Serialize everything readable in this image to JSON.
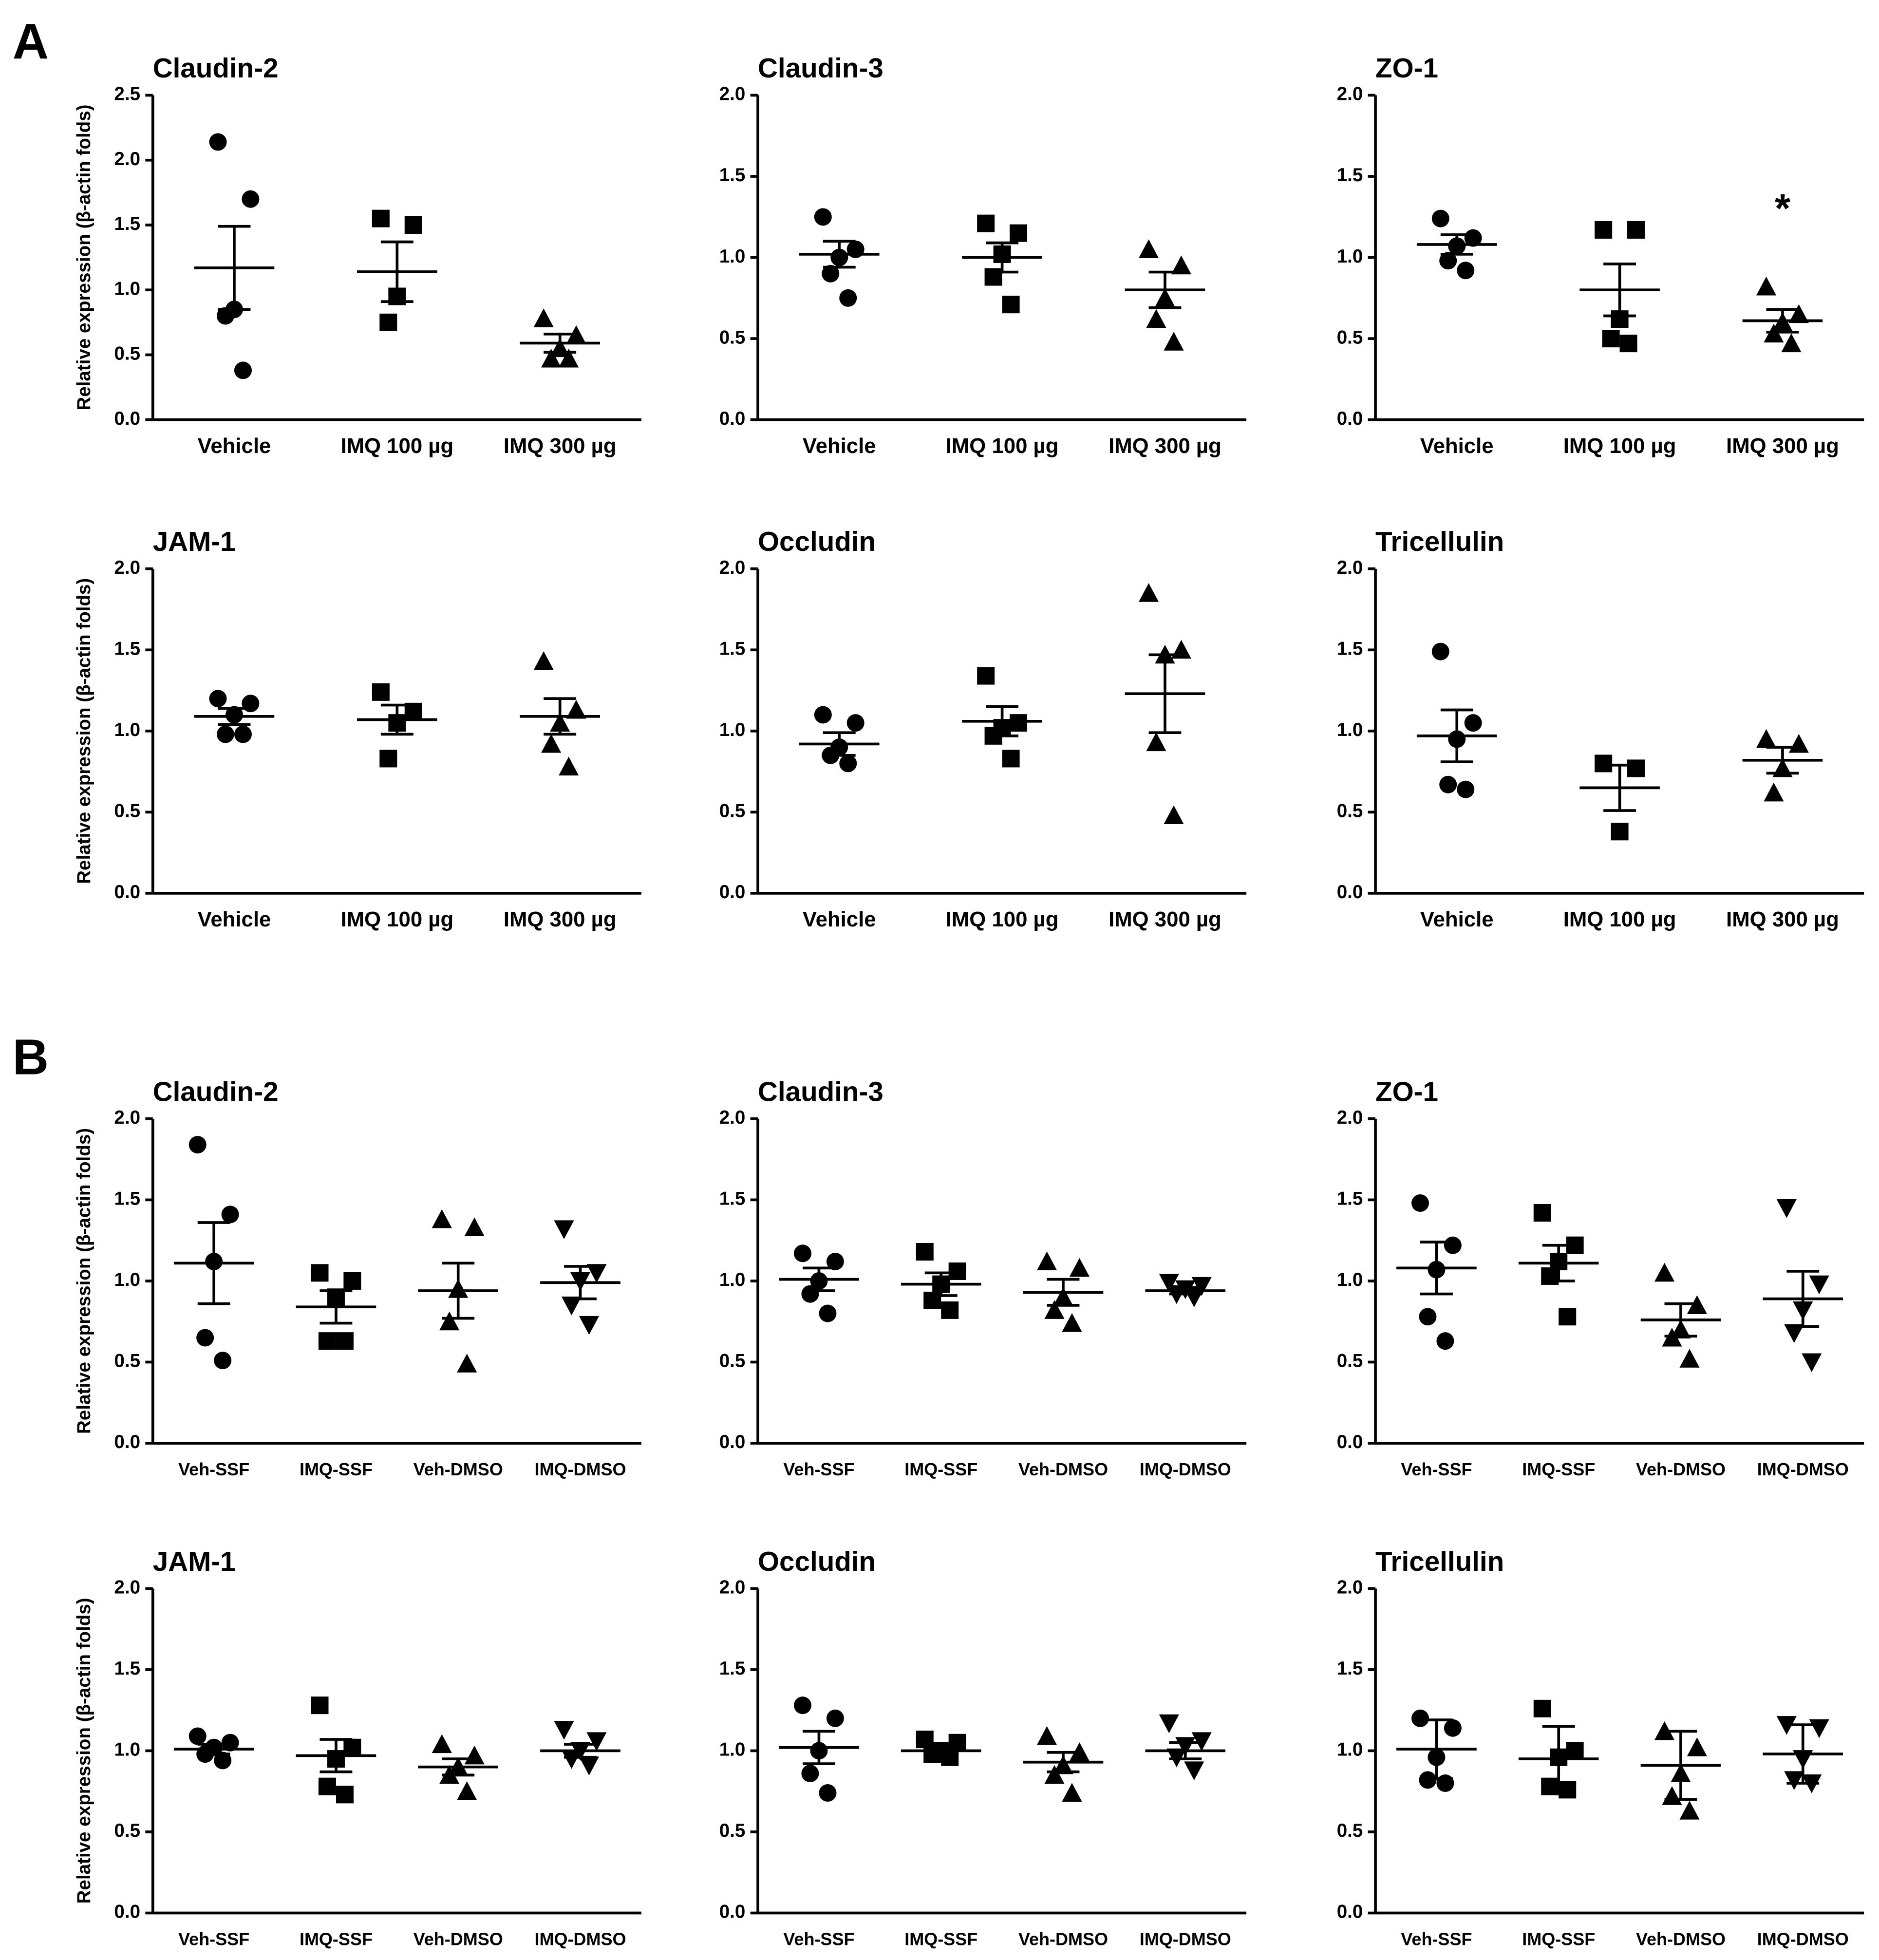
{
  "panel_labels": [
    "A",
    "B"
  ],
  "chart_data": [
    {
      "type": "dot",
      "title": "Claudin-2",
      "ylabel": "Relative expression (β-actin folds)",
      "ylim": [
        0,
        2.5
      ],
      "yticks": [
        {
          "value": 0,
          "label": "0.0"
        },
        {
          "value": 0.5,
          "label": "0.5"
        },
        {
          "value": 1,
          "label": "1.0"
        },
        {
          "value": 1.5,
          "label": "1.5"
        },
        {
          "value": 2,
          "label": "2.0"
        },
        2.5
      ],
      "markers": [
        "circle",
        "square",
        "triangle-up"
      ],
      "groups": [
        {
          "name": "Vehicle",
          "values": [
            2.14,
            1.7,
            0.85,
            0.8,
            0.38
          ],
          "mean": 1.17,
          "error": 0.32
        },
        {
          "name": "IMQ 100 µg",
          "values": [
            1.55,
            1.5,
            0.95,
            0.75
          ],
          "mean": 1.14,
          "error": 0.23
        },
        {
          "name": "IMQ 300 µg",
          "values": [
            0.78,
            0.65,
            0.55,
            0.47,
            0.47
          ],
          "mean": 0.59,
          "error": 0.07
        }
      ]
    },
    {
      "type": "dot",
      "title": "Claudin-3",
      "ylim": [
        0,
        2
      ],
      "yticks": [
        {
          "value": 0,
          "label": "0.0"
        },
        {
          "value": 0.5,
          "label": "0.5"
        },
        {
          "value": 1,
          "label": "1.0"
        },
        {
          "value": 1.5,
          "label": "1.5"
        },
        {
          "value": 2,
          "label": "2.0"
        }
      ],
      "markers": [
        "circle",
        "square",
        "triangle-up"
      ],
      "groups": [
        {
          "name": "Vehicle",
          "values": [
            1.25,
            1.05,
            1.0,
            0.9,
            0.75
          ],
          "mean": 1.02,
          "error": 0.08
        },
        {
          "name": "IMQ 100 µg",
          "values": [
            1.21,
            1.15,
            1.02,
            0.88,
            0.71
          ],
          "mean": 1.0,
          "error": 0.09
        },
        {
          "name": "IMQ 300 µg",
          "values": [
            1.05,
            0.95,
            0.75,
            0.62,
            0.48
          ],
          "mean": 0.8,
          "error": 0.11
        }
      ]
    },
    {
      "type": "dot",
      "title": "ZO-1",
      "ylim": [
        0,
        2
      ],
      "yticks": [
        {
          "value": 0,
          "label": "0.0"
        },
        {
          "value": 0.5,
          "label": "0.5"
        },
        {
          "value": 1,
          "label": "1.0"
        },
        {
          "value": 1.5,
          "label": "1.5"
        },
        {
          "value": 2,
          "label": "2.0"
        }
      ],
      "markers": [
        "circle",
        "square",
        "triangle-up"
      ],
      "groups": [
        {
          "name": "Vehicle",
          "values": [
            1.24,
            1.12,
            1.07,
            0.98,
            0.92
          ],
          "mean": 1.08,
          "error": 0.06
        },
        {
          "name": "IMQ 100 µg",
          "values": [
            1.17,
            1.17,
            0.62,
            0.5,
            0.47
          ],
          "mean": 0.8,
          "error": 0.16
        },
        {
          "name": "IMQ 300 µg",
          "values": [
            0.82,
            0.65,
            0.6,
            0.53,
            0.47
          ],
          "mean": 0.61,
          "error": 0.07,
          "annotation": "*"
        }
      ]
    },
    {
      "type": "dot",
      "title": "JAM-1",
      "ylabel": "Relative expression (β-actin folds)",
      "ylim": [
        0,
        2
      ],
      "yticks": [
        {
          "value": 0,
          "label": "0.0"
        },
        {
          "value": 0.5,
          "label": "0.5"
        },
        {
          "value": 1,
          "label": "1.0"
        },
        {
          "value": 1.5,
          "label": "1.5"
        },
        {
          "value": 2,
          "label": "2.0"
        }
      ],
      "markers": [
        "circle",
        "square",
        "triangle-up"
      ],
      "groups": [
        {
          "name": "Vehicle",
          "values": [
            1.2,
            1.17,
            1.1,
            0.98,
            0.98
          ],
          "mean": 1.09,
          "error": 0.05
        },
        {
          "name": "IMQ 100 µg",
          "values": [
            1.24,
            1.12,
            1.05,
            0.83
          ],
          "mean": 1.07,
          "error": 0.09
        },
        {
          "name": "IMQ 300 µg",
          "values": [
            1.43,
            1.13,
            1.05,
            0.92,
            0.78
          ],
          "mean": 1.09,
          "error": 0.11
        }
      ]
    },
    {
      "type": "dot",
      "title": "Occludin",
      "ylim": [
        0,
        2
      ],
      "yticks": [
        {
          "value": 0,
          "label": "0.0"
        },
        {
          "value": 0.5,
          "label": "0.5"
        },
        {
          "value": 1,
          "label": "1.0"
        },
        {
          "value": 1.5,
          "label": "1.5"
        },
        {
          "value": 2,
          "label": "2.0"
        }
      ],
      "markers": [
        "circle",
        "square",
        "triangle-up"
      ],
      "groups": [
        {
          "name": "Vehicle",
          "values": [
            1.1,
            1.05,
            0.9,
            0.85,
            0.8
          ],
          "mean": 0.92,
          "error": 0.07
        },
        {
          "name": "IMQ 100 µg",
          "values": [
            1.34,
            1.05,
            1.02,
            0.97,
            0.83
          ],
          "mean": 1.06,
          "error": 0.09
        },
        {
          "name": "IMQ 300 µg",
          "values": [
            1.85,
            1.5,
            1.47,
            0.93,
            0.48
          ],
          "mean": 1.23,
          "error": 0.24
        }
      ]
    },
    {
      "type": "dot",
      "title": "Tricellulin",
      "ylim": [
        0,
        2
      ],
      "yticks": [
        {
          "value": 0,
          "label": "0.0"
        },
        {
          "value": 0.5,
          "label": "0.5"
        },
        {
          "value": 1,
          "label": "1.0"
        },
        {
          "value": 1.5,
          "label": "1.5"
        },
        {
          "value": 2,
          "label": "2.0"
        }
      ],
      "markers": [
        "circle",
        "square",
        "triangle-up"
      ],
      "groups": [
        {
          "name": "Vehicle",
          "values": [
            1.49,
            1.05,
            0.95,
            0.67,
            0.64
          ],
          "mean": 0.97,
          "error": 0.16
        },
        {
          "name": "IMQ 100 µg",
          "values": [
            0.8,
            0.77,
            0.38
          ],
          "mean": 0.65,
          "error": 0.14
        },
        {
          "name": "IMQ 300 µg",
          "values": [
            0.95,
            0.92,
            0.77,
            0.62
          ],
          "mean": 0.82,
          "error": 0.08
        }
      ]
    },
    {
      "type": "dot",
      "title": "Claudin-2",
      "ylabel": "Relative expression (β-actin folds)",
      "ylim": [
        0,
        2
      ],
      "yticks": [
        {
          "value": 0,
          "label": "0.0"
        },
        {
          "value": 0.5,
          "label": "0.5"
        },
        {
          "value": 1,
          "label": "1.0"
        },
        {
          "value": 1.5,
          "label": "1.5"
        },
        {
          "value": 2,
          "label": "2.0"
        }
      ],
      "markers": [
        "circle",
        "square",
        "triangle-up",
        "triangle-down"
      ],
      "groups": [
        {
          "name": "Veh-SSF",
          "values": [
            1.84,
            1.41,
            1.12,
            0.65,
            0.51
          ],
          "mean": 1.11,
          "error": 0.25
        },
        {
          "name": "IMQ-SSF",
          "values": [
            1.05,
            1.0,
            0.9,
            0.63,
            0.63
          ],
          "mean": 0.84,
          "error": 0.1
        },
        {
          "name": "Veh-DMSO",
          "values": [
            1.38,
            1.33,
            0.95,
            0.75,
            0.49
          ],
          "mean": 0.94,
          "error": 0.17
        },
        {
          "name": "IMQ-DMSO",
          "values": [
            1.32,
            1.05,
            1.0,
            0.85,
            0.73
          ],
          "mean": 0.99,
          "error": 0.1
        }
      ]
    },
    {
      "type": "dot",
      "title": "Claudin-3",
      "ylim": [
        0,
        2
      ],
      "yticks": [
        {
          "value": 0,
          "label": "0.0"
        },
        {
          "value": 0.5,
          "label": "0.5"
        },
        {
          "value": 1,
          "label": "1.0"
        },
        {
          "value": 1.5,
          "label": "1.5"
        },
        {
          "value": 2,
          "label": "2.0"
        }
      ],
      "markers": [
        "circle",
        "square",
        "triangle-up",
        "triangle-down"
      ],
      "groups": [
        {
          "name": "Veh-SSF",
          "values": [
            1.17,
            1.12,
            1.0,
            0.92,
            0.8
          ],
          "mean": 1.01,
          "error": 0.07
        },
        {
          "name": "IMQ-SSF",
          "values": [
            1.18,
            1.06,
            0.98,
            0.88,
            0.82
          ],
          "mean": 0.98,
          "error": 0.07
        },
        {
          "name": "Veh-DMSO",
          "values": [
            1.12,
            1.08,
            0.9,
            0.82,
            0.74
          ],
          "mean": 0.93,
          "error": 0.08
        },
        {
          "name": "IMQ-DMSO",
          "values": [
            0.99,
            0.97,
            0.95,
            0.92,
            0.9
          ],
          "mean": 0.94,
          "error": 0.02
        }
      ]
    },
    {
      "type": "dot",
      "title": "ZO-1",
      "ylim": [
        0,
        2
      ],
      "yticks": [
        {
          "value": 0,
          "label": "0.0"
        },
        {
          "value": 0.5,
          "label": "0.5"
        },
        {
          "value": 1,
          "label": "1.0"
        },
        {
          "value": 1.5,
          "label": "1.5"
        },
        {
          "value": 2,
          "label": "2.0"
        }
      ],
      "markers": [
        "circle",
        "square",
        "triangle-up",
        "triangle-down"
      ],
      "groups": [
        {
          "name": "Veh-SSF",
          "values": [
            1.48,
            1.22,
            1.07,
            0.78,
            0.63
          ],
          "mean": 1.08,
          "error": 0.16
        },
        {
          "name": "IMQ-SSF",
          "values": [
            1.42,
            1.22,
            1.12,
            1.03,
            0.78
          ],
          "mean": 1.11,
          "error": 0.11
        },
        {
          "name": "Veh-DMSO",
          "values": [
            1.05,
            0.85,
            0.7,
            0.65,
            0.52
          ],
          "mean": 0.76,
          "error": 0.1
        },
        {
          "name": "IMQ-DMSO",
          "values": [
            1.45,
            0.98,
            0.82,
            0.68,
            0.5
          ],
          "mean": 0.89,
          "error": 0.17
        }
      ]
    },
    {
      "type": "dot",
      "title": "JAM-1",
      "ylabel": "Relative expression (β-actin folds)",
      "ylim": [
        0,
        2
      ],
      "yticks": [
        {
          "value": 0,
          "label": "0.0"
        },
        {
          "value": 0.5,
          "label": "0.5"
        },
        {
          "value": 1,
          "label": "1.0"
        },
        {
          "value": 1.5,
          "label": "1.5"
        },
        {
          "value": 2,
          "label": "2.0"
        }
      ],
      "markers": [
        "circle",
        "square",
        "triangle-up",
        "triangle-down"
      ],
      "groups": [
        {
          "name": "Veh-SSF",
          "values": [
            1.09,
            1.05,
            1.02,
            0.98,
            0.94
          ],
          "mean": 1.01,
          "error": 0.03
        },
        {
          "name": "IMQ-SSF",
          "values": [
            1.28,
            1.02,
            0.95,
            0.78,
            0.73
          ],
          "mean": 0.97,
          "error": 0.1
        },
        {
          "name": "Veh-DMSO",
          "values": [
            1.04,
            0.97,
            0.9,
            0.85,
            0.75
          ],
          "mean": 0.9,
          "error": 0.05
        },
        {
          "name": "IMQ-DMSO",
          "values": [
            1.13,
            1.06,
            1.0,
            0.95,
            0.91
          ],
          "mean": 1.0,
          "error": 0.04
        }
      ]
    },
    {
      "type": "dot",
      "title": "Occludin",
      "ylim": [
        0,
        2
      ],
      "yticks": [
        {
          "value": 0,
          "label": "0.0"
        },
        {
          "value": 0.5,
          "label": "0.5"
        },
        {
          "value": 1,
          "label": "1.0"
        },
        {
          "value": 1.5,
          "label": "1.5"
        },
        {
          "value": 2,
          "label": "2.0"
        }
      ],
      "markers": [
        "circle",
        "square",
        "triangle-up",
        "triangle-down"
      ],
      "groups": [
        {
          "name": "Veh-SSF",
          "values": [
            1.28,
            1.2,
            1.0,
            0.86,
            0.74
          ],
          "mean": 1.02,
          "error": 0.1
        },
        {
          "name": "IMQ-SSF",
          "values": [
            1.07,
            1.05,
            1.0,
            0.98,
            0.96
          ],
          "mean": 1.0,
          "error": 0.02
        },
        {
          "name": "Veh-DMSO",
          "values": [
            1.09,
            0.99,
            0.91,
            0.85,
            0.74
          ],
          "mean": 0.93,
          "error": 0.06
        },
        {
          "name": "IMQ-DMSO",
          "values": [
            1.17,
            1.06,
            1.03,
            0.96,
            0.88
          ],
          "mean": 1.0,
          "error": 0.05
        }
      ]
    },
    {
      "type": "dot",
      "title": "Tricellulin",
      "ylim": [
        0,
        2
      ],
      "yticks": [
        {
          "value": 0,
          "label": "0.0"
        },
        {
          "value": 0.5,
          "label": "0.5"
        },
        {
          "value": 1,
          "label": "1.0"
        },
        {
          "value": 1.5,
          "label": "1.5"
        },
        {
          "value": 2,
          "label": "2.0"
        }
      ],
      "markers": [
        "circle",
        "square",
        "triangle-up",
        "triangle-down"
      ],
      "groups": [
        {
          "name": "Veh-SSF",
          "values": [
            1.2,
            1.14,
            0.96,
            0.82,
            0.8
          ],
          "mean": 1.01,
          "error": 0.18
        },
        {
          "name": "IMQ-SSF",
          "values": [
            1.26,
            1.0,
            0.96,
            0.78,
            0.76
          ],
          "mean": 0.95,
          "error": 0.2
        },
        {
          "name": "Veh-DMSO",
          "values": [
            1.12,
            1.02,
            0.86,
            0.72,
            0.63
          ],
          "mean": 0.91,
          "error": 0.21
        },
        {
          "name": "IMQ-DMSO",
          "values": [
            1.16,
            1.14,
            0.95,
            0.82,
            0.8
          ],
          "mean": 0.98,
          "error": 0.18
        }
      ]
    }
  ]
}
